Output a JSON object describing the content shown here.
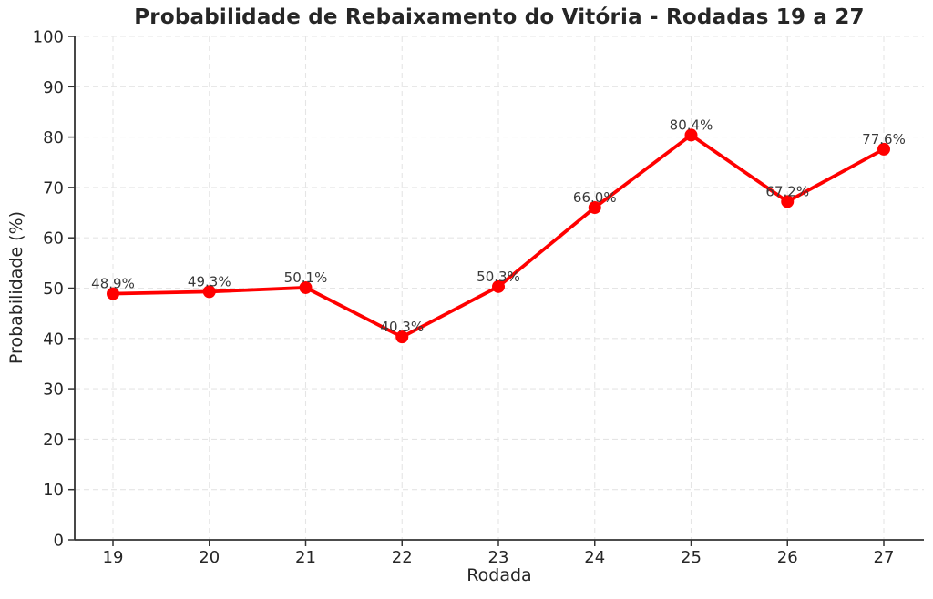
{
  "chart_data": {
    "type": "line",
    "title": "Probabilidade de Rebaixamento do Vitória - Rodadas 19 a 27",
    "xlabel": "Rodada",
    "ylabel": "Probabilidade (%)",
    "x": [
      19,
      20,
      21,
      22,
      23,
      24,
      25,
      26,
      27
    ],
    "series": [
      {
        "name": "Probabilidade de rebaixamento",
        "values": [
          48.9,
          49.3,
          50.1,
          40.3,
          50.3,
          66.0,
          80.4,
          67.2,
          77.6
        ],
        "point_labels": [
          "48.9%",
          "49.3%",
          "50.1%",
          "40.3%",
          "50.3%",
          "66.0%",
          "80.4%",
          "67.2%",
          "77.6%"
        ]
      }
    ],
    "ylim": [
      0,
      100
    ],
    "yticks": [
      0,
      10,
      20,
      30,
      40,
      50,
      60,
      70,
      80,
      90,
      100
    ],
    "xticks": [
      19,
      20,
      21,
      22,
      23,
      24,
      25,
      26,
      27
    ],
    "grid": "dashed-both",
    "legend": "none",
    "colors": {
      "line": "#ff0000",
      "marker": "#ff0000",
      "grid": "#e5e5e5",
      "spine": "#333333",
      "text": "#262626",
      "point_label": "#3a3a3a",
      "background": "#ffffff"
    }
  }
}
